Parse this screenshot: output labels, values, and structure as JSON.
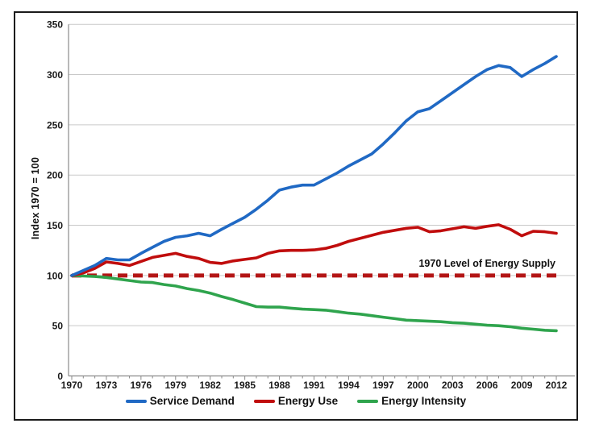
{
  "chart": {
    "y_axis_title": "Index 1970 = 100",
    "annotation": "1970 Level of Energy Supply",
    "colors": {
      "service_demand": "#2069C4",
      "energy_use": "#C00D0D",
      "energy_intensity": "#2FA44D",
      "supply_dashed_line": "#B31515",
      "grid": "#C9C9C9",
      "axis": "#8A8A8A",
      "frame": "#1B1B1B"
    }
  },
  "chart_data": {
    "type": "line",
    "title": "",
    "xlabel": "",
    "ylabel": "Index 1970 = 100",
    "xlim": [
      1970,
      2012
    ],
    "ylim": [
      0,
      350
    ],
    "x_ticks": [
      1970,
      1973,
      1976,
      1979,
      1982,
      1985,
      1988,
      1991,
      1994,
      1997,
      2000,
      2003,
      2006,
      2009,
      2012
    ],
    "y_ticks": [
      0,
      50,
      100,
      150,
      200,
      250,
      300,
      350
    ],
    "grid": "horizontal",
    "legend_position": "bottom",
    "x": [
      1970,
      1971,
      1972,
      1973,
      1974,
      1975,
      1976,
      1977,
      1978,
      1979,
      1980,
      1981,
      1982,
      1983,
      1984,
      1985,
      1986,
      1987,
      1988,
      1989,
      1990,
      1991,
      1992,
      1993,
      1994,
      1995,
      1996,
      1997,
      1998,
      1999,
      2000,
      2001,
      2002,
      2003,
      2004,
      2005,
      2006,
      2007,
      2008,
      2009,
      2010,
      2011,
      2012
    ],
    "series": [
      {
        "name": "Service Demand",
        "color": "#2069C4",
        "values": [
          100,
          105,
          110,
          117,
          115.5,
          115.5,
          122,
          128,
          134,
          138,
          139.5,
          142,
          139.5,
          146,
          152,
          158,
          166,
          175,
          185,
          188,
          190,
          190,
          196,
          202,
          209,
          215,
          221,
          231,
          242,
          254,
          263,
          266,
          274,
          282,
          290,
          298,
          305,
          309,
          307,
          298,
          305,
          311,
          318
        ]
      },
      {
        "name": "Energy Use",
        "color": "#C00D0D",
        "values": [
          100,
          102.5,
          107,
          113.5,
          112,
          110,
          114,
          118,
          120,
          122,
          119,
          117,
          113,
          112,
          114.5,
          116,
          117.5,
          122,
          124.5,
          125,
          125,
          125.5,
          127,
          130,
          134,
          137,
          140,
          143,
          145,
          147,
          148,
          143.5,
          144.5,
          146.5,
          148.5,
          147,
          149,
          150.5,
          146,
          139.5,
          144,
          143.5,
          142
        ]
      },
      {
        "name": "Energy Intensity",
        "color": "#2FA44D",
        "values": [
          100,
          99.5,
          99,
          98,
          96.5,
          95,
          93.5,
          93,
          91,
          89.5,
          87,
          85,
          82.5,
          79,
          76,
          72.5,
          69,
          68.5,
          68.5,
          67.5,
          66.5,
          66,
          65.5,
          64,
          62.5,
          61.5,
          60,
          58.5,
          57,
          55.5,
          55,
          54.5,
          54,
          53,
          52.5,
          51.5,
          50.5,
          50,
          49,
          47.5,
          46.5,
          45.5,
          45
        ]
      }
    ],
    "reference_line": {
      "label": "1970 Level of Energy Supply",
      "value": 100,
      "style": "dashed",
      "color": "#B31515"
    }
  }
}
